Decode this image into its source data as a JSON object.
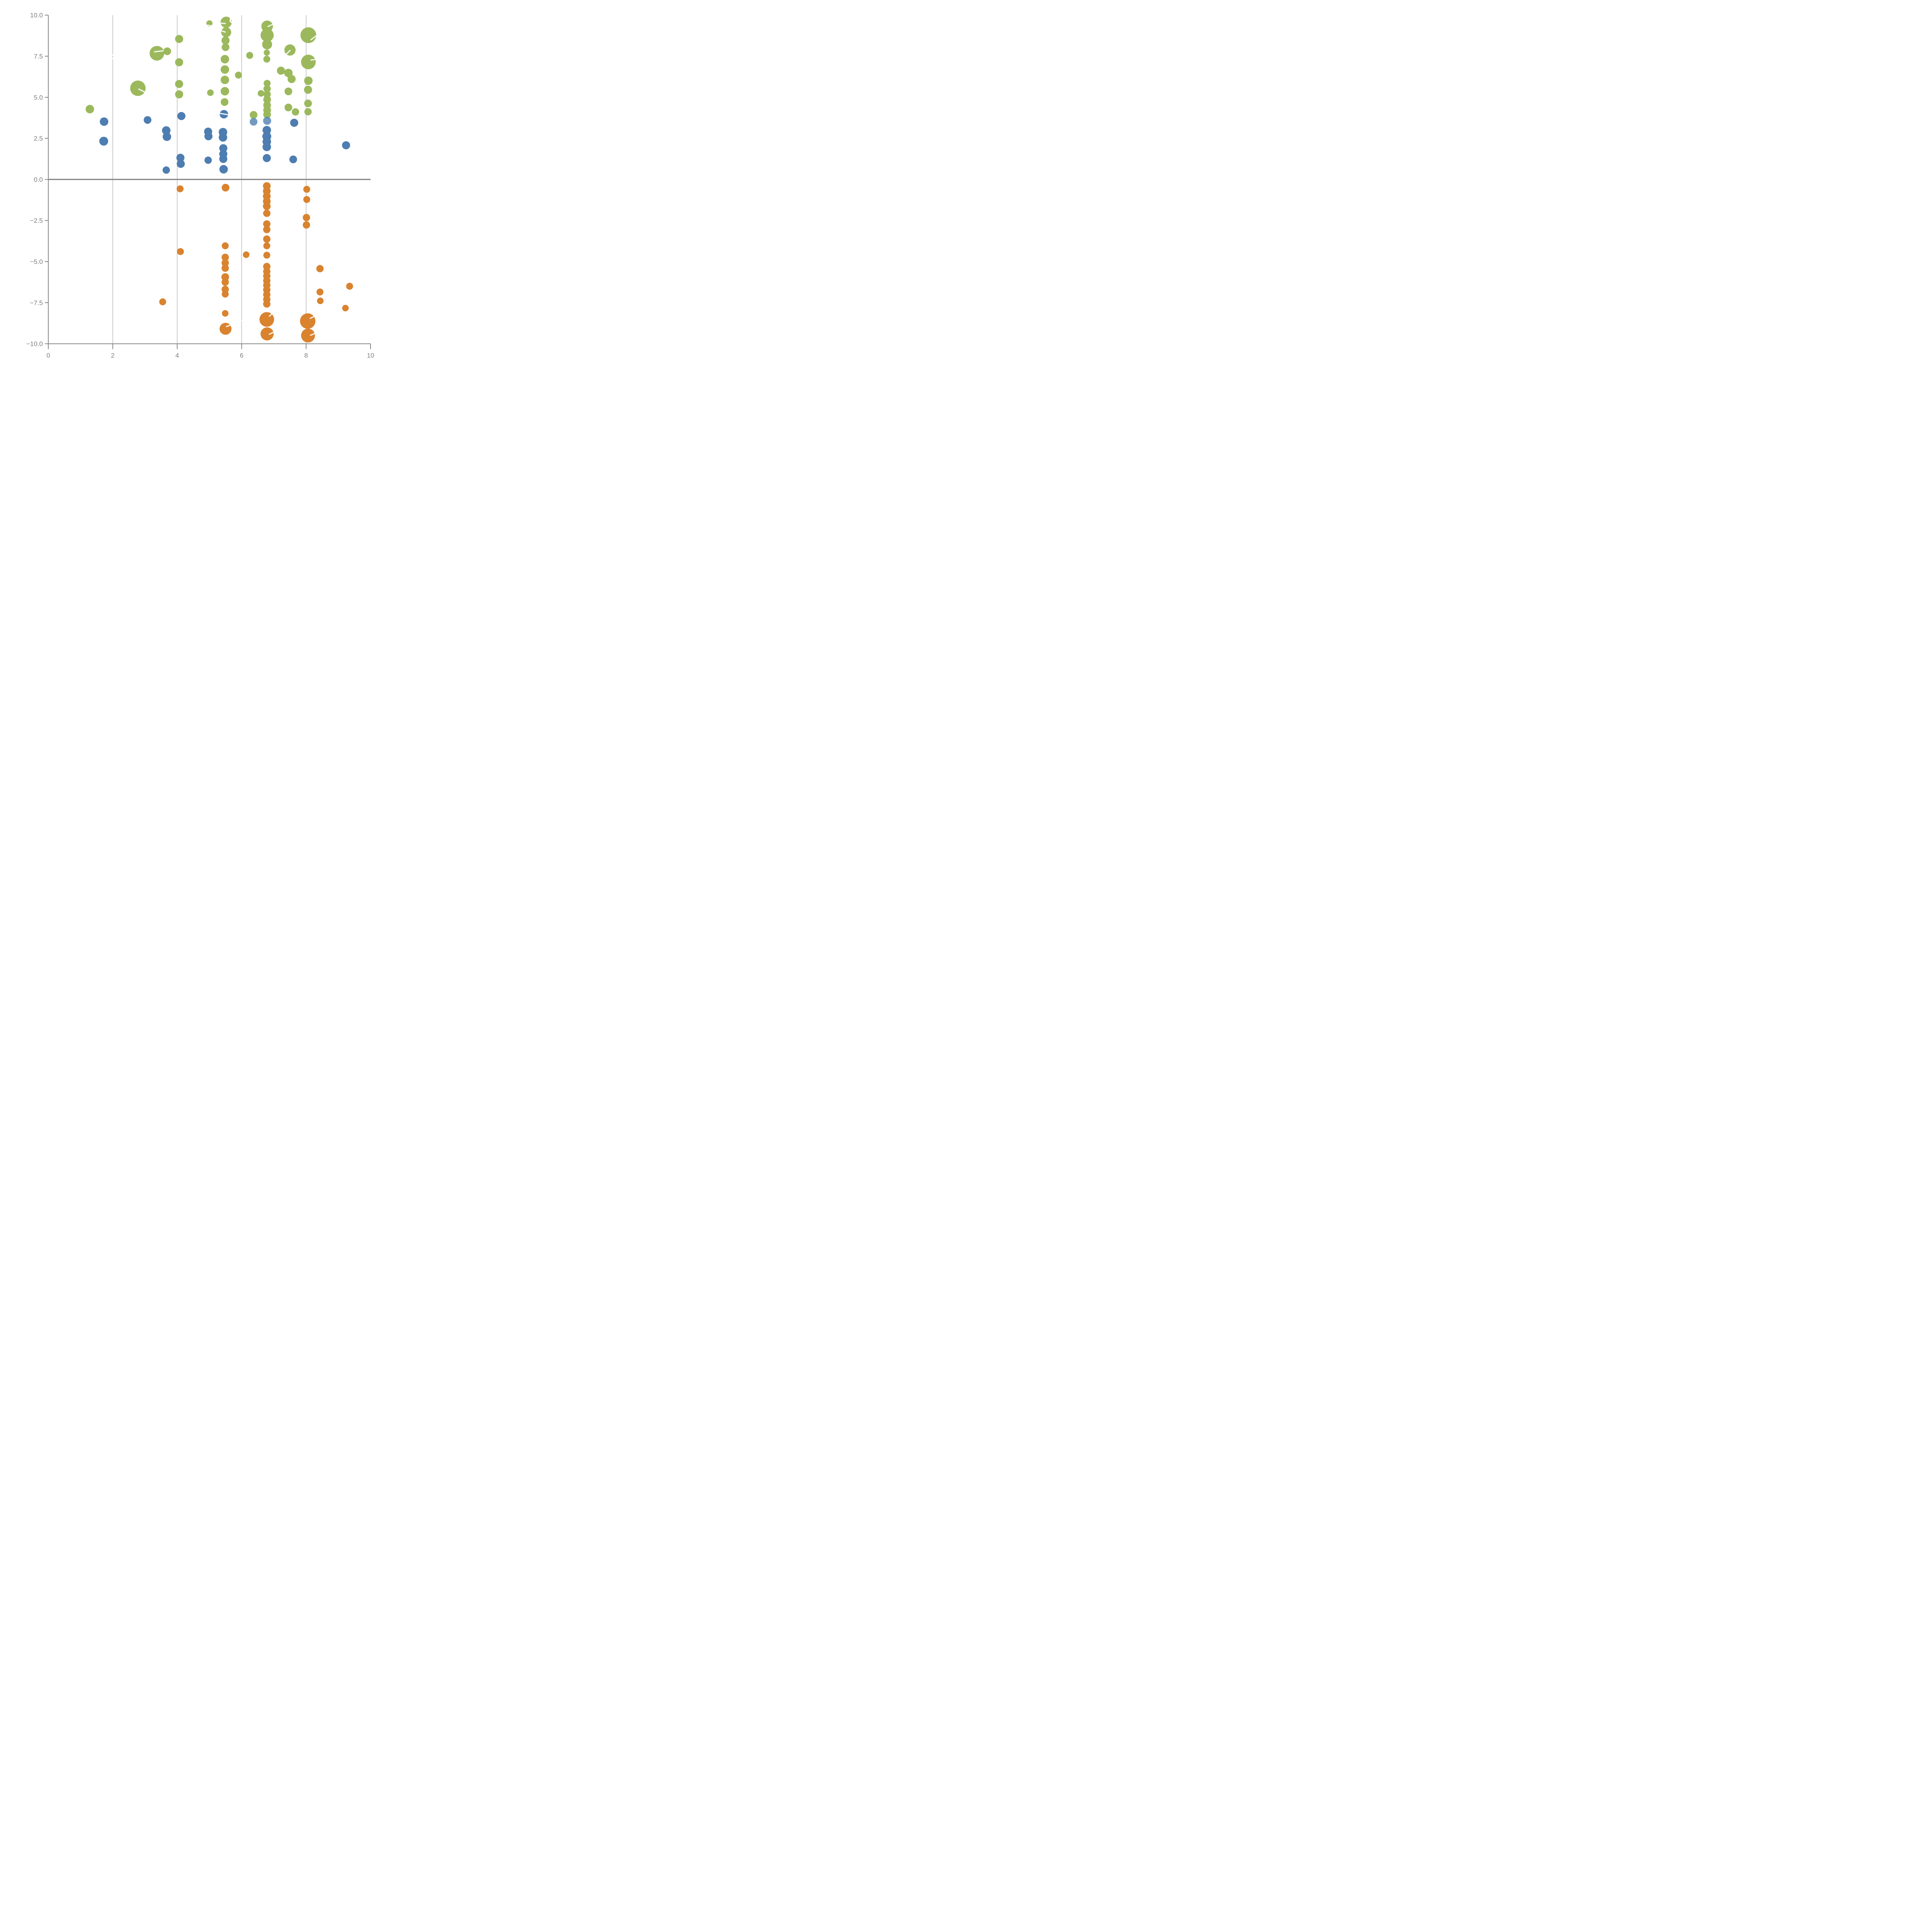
{
  "figure": {
    "background": "#ffffff",
    "title": ""
  },
  "chart_data": {
    "type": "scatter",
    "subtype": "bubble",
    "title": "",
    "xlabel": "",
    "ylabel": "",
    "xlim": [
      0,
      10
    ],
    "ylim": [
      -10,
      10
    ],
    "grid": "vertical-only",
    "legend": "none",
    "x_ticks": [
      {
        "v": 0,
        "label": "0"
      },
      {
        "v": 2,
        "label": "2"
      },
      {
        "v": 4,
        "label": "4"
      },
      {
        "v": 6,
        "label": "6"
      },
      {
        "v": 8,
        "label": "8"
      },
      {
        "v": 10,
        "label": "10"
      }
    ],
    "y_ticks": [
      {
        "v": 10,
        "label": "10.0"
      },
      {
        "v": 7.5,
        "label": "7.5"
      },
      {
        "v": 5,
        "label": "5.0"
      },
      {
        "v": 2.5,
        "label": "2.5"
      },
      {
        "v": 0,
        "label": "0.0"
      },
      {
        "v": -2.5,
        "label": "−2.5"
      },
      {
        "v": -5,
        "label": "−5.0"
      },
      {
        "v": -7.5,
        "label": "−7.5"
      },
      {
        "v": -10,
        "label": "−10.0"
      }
    ],
    "gridline_x_values": [
      2,
      4,
      6,
      8
    ],
    "zero_line": {
      "y": 0,
      "color": "#898989",
      "width": 3.2
    },
    "axis_color": "#888888",
    "gridline_color": "#9a9a9a",
    "tick_label_color": "#7f7f7f",
    "series": [
      {
        "name": "green",
        "color": "#9bb95c",
        "points": [
          [
            1.29,
            4.28,
            11
          ],
          [
            2.78,
            5.55,
            20
          ],
          [
            3.37,
            7.68,
            19
          ],
          [
            3.69,
            7.8,
            10
          ],
          [
            4.06,
            8.55,
            10.5
          ],
          [
            4.06,
            7.13,
            10.5
          ],
          [
            4.06,
            5.81,
            10.5
          ],
          [
            4.06,
            5.18,
            10.5
          ],
          [
            5.0,
            9.5,
            8
          ],
          [
            5.52,
            9.57,
            14.5
          ],
          [
            5.52,
            8.96,
            13
          ],
          [
            5.5,
            8.46,
            10.5
          ],
          [
            5.5,
            8.05,
            10
          ],
          [
            5.48,
            7.32,
            11
          ],
          [
            5.48,
            6.69,
            11
          ],
          [
            5.48,
            6.06,
            11
          ],
          [
            5.48,
            5.37,
            11
          ],
          [
            5.47,
            4.71,
            10
          ],
          [
            5.03,
            5.28,
            8.5
          ],
          [
            5.9,
            6.35,
            9
          ],
          [
            6.25,
            7.55,
            9
          ],
          [
            6.37,
            3.93,
            10
          ],
          [
            6.6,
            5.24,
            8.5
          ],
          [
            6.79,
            9.32,
            15
          ],
          [
            6.79,
            8.78,
            17
          ],
          [
            6.79,
            8.22,
            13
          ],
          [
            6.78,
            7.72,
            8
          ],
          [
            6.78,
            7.32,
            9
          ],
          [
            6.79,
            5.85,
            9
          ],
          [
            6.79,
            5.52,
            9.5
          ],
          [
            6.79,
            5.18,
            9.5
          ],
          [
            6.79,
            4.86,
            10
          ],
          [
            6.79,
            4.52,
            10
          ],
          [
            6.79,
            4.22,
            10
          ],
          [
            6.79,
            3.95,
            10
          ],
          [
            7.22,
            6.62,
            10.5
          ],
          [
            7.45,
            6.48,
            11
          ],
          [
            7.55,
            6.11,
            10.5
          ],
          [
            7.45,
            5.36,
            10
          ],
          [
            7.45,
            4.38,
            10
          ],
          [
            7.67,
            4.11,
            9.5
          ],
          [
            7.5,
            7.88,
            14.5
          ],
          [
            8.07,
            8.78,
            20.5
          ],
          [
            8.07,
            7.15,
            19
          ],
          [
            8.07,
            6.01,
            11
          ],
          [
            8.06,
            5.46,
            10.5
          ],
          [
            8.06,
            4.63,
            10
          ],
          [
            8.06,
            4.12,
            9.5
          ]
        ]
      },
      {
        "name": "blue",
        "color": "#4d7db1",
        "points": [
          [
            1.73,
            3.52,
            11
          ],
          [
            1.72,
            2.33,
            11.5
          ],
          [
            3.08,
            3.62,
            10
          ],
          [
            3.66,
            2.98,
            11
          ],
          [
            3.68,
            2.6,
            11
          ],
          [
            3.66,
            0.57,
            9.5
          ],
          [
            4.13,
            3.86,
            10.5
          ],
          [
            4.1,
            1.32,
            10.5
          ],
          [
            4.11,
            0.95,
            10.5
          ],
          [
            4.96,
            2.91,
            10.5
          ],
          [
            4.97,
            2.63,
            10.5
          ],
          [
            4.96,
            1.17,
            9.5
          ],
          [
            5.45,
            3.97,
            11
          ],
          [
            5.42,
            2.88,
            11
          ],
          [
            5.42,
            2.56,
            11
          ],
          [
            5.43,
            1.9,
            10.5
          ],
          [
            5.43,
            1.55,
            10.5
          ],
          [
            5.43,
            1.25,
            10.5
          ],
          [
            5.44,
            0.62,
            11
          ],
          [
            6.37,
            3.51,
            10
          ],
          [
            6.79,
            3.57,
            10.5
          ],
          [
            6.78,
            3.0,
            11
          ],
          [
            6.78,
            2.62,
            11.5
          ],
          [
            6.78,
            2.3,
            11
          ],
          [
            6.78,
            1.98,
            11
          ],
          [
            6.78,
            1.3,
            10.5
          ],
          [
            7.63,
            3.45,
            10.5
          ],
          [
            7.6,
            1.22,
            10
          ],
          [
            9.24,
            2.08,
            10.5
          ]
        ],
        "translucent_points_idx": [
          19,
          20
        ]
      },
      {
        "name": "orange",
        "color": "#d9832f",
        "points": [
          [
            4.09,
            -0.57,
            9
          ],
          [
            5.5,
            -0.5,
            10
          ],
          [
            6.78,
            -0.4,
            10
          ],
          [
            6.78,
            -0.71,
            10
          ],
          [
            6.78,
            -1.02,
            10
          ],
          [
            6.78,
            -1.33,
            10
          ],
          [
            6.78,
            -1.63,
            10
          ],
          [
            6.78,
            -2.06,
            9.5
          ],
          [
            6.78,
            -2.71,
            9.5
          ],
          [
            6.78,
            -3.05,
            9.5
          ],
          [
            8.02,
            -0.6,
            9
          ],
          [
            8.02,
            -1.22,
            9
          ],
          [
            8.01,
            -2.32,
            9.5
          ],
          [
            8.01,
            -2.77,
            9.5
          ],
          [
            4.1,
            -4.39,
            9
          ],
          [
            3.55,
            -7.45,
            9
          ],
          [
            5.49,
            -4.04,
            9
          ],
          [
            5.49,
            -4.74,
            9.5
          ],
          [
            5.49,
            -5.08,
            9.5
          ],
          [
            5.49,
            -5.4,
            9.5
          ],
          [
            5.49,
            -5.94,
            10
          ],
          [
            5.49,
            -6.25,
            9.5
          ],
          [
            5.49,
            -6.69,
            9.5
          ],
          [
            5.49,
            -6.98,
            9
          ],
          [
            5.49,
            -8.15,
            8.5
          ],
          [
            5.5,
            -9.09,
            15.5
          ],
          [
            6.14,
            -4.58,
            8.5
          ],
          [
            6.78,
            -3.63,
            9.5
          ],
          [
            6.78,
            -4.04,
            9
          ],
          [
            6.78,
            -4.61,
            9
          ],
          [
            6.78,
            -5.3,
            9.5
          ],
          [
            6.78,
            -5.6,
            9.5
          ],
          [
            6.78,
            -5.88,
            9.5
          ],
          [
            6.78,
            -6.16,
            9.5
          ],
          [
            6.78,
            -6.44,
            9.5
          ],
          [
            6.78,
            -6.72,
            9.5
          ],
          [
            6.78,
            -7.01,
            9.5
          ],
          [
            6.78,
            -7.3,
            9.5
          ],
          [
            6.78,
            -7.58,
            9.5
          ],
          [
            6.78,
            -8.52,
            19
          ],
          [
            6.79,
            -9.4,
            17
          ],
          [
            8.05,
            -8.62,
            20
          ],
          [
            8.06,
            -9.5,
            18
          ],
          [
            8.43,
            -5.43,
            9.5
          ],
          [
            8.43,
            -6.85,
            9
          ],
          [
            8.44,
            -7.39,
            8.5
          ],
          [
            9.35,
            -6.5,
            9
          ],
          [
            9.22,
            -7.83,
            8.5
          ]
        ]
      }
    ],
    "white_highlight_segments": [
      [
        1.95,
        7.6,
        2.06,
        7.54
      ],
      [
        1.95,
        7.38,
        2.07,
        7.32
      ],
      [
        5.97,
        9.75,
        5.97,
        9.48
      ],
      [
        4.72,
        9.44,
        5.08,
        9.35
      ],
      [
        4.75,
        9.17,
        4.93,
        9.02
      ],
      [
        5.29,
        9.52,
        5.49,
        9.49
      ],
      [
        5.3,
        9.09,
        5.49,
        8.97
      ],
      [
        2.81,
        5.5,
        3.06,
        5.25
      ],
      [
        3.3,
        7.77,
        3.56,
        7.83
      ],
      [
        6.82,
        9.31,
        7.03,
        9.5
      ],
      [
        7.33,
        7.51,
        7.5,
        7.85
      ],
      [
        8.15,
        8.5,
        8.34,
        8.78
      ],
      [
        8.15,
        7.27,
        8.33,
        7.32
      ],
      [
        5.3,
        4.03,
        5.61,
        3.93
      ],
      [
        5.53,
        -8.95,
        5.82,
        -8.76
      ],
      [
        6.86,
        -8.32,
        7.01,
        -8.06
      ],
      [
        6.86,
        -9.42,
        7.04,
        -9.26
      ],
      [
        8.13,
        -8.45,
        8.31,
        -8.28
      ],
      [
        8.14,
        -9.48,
        8.34,
        -9.32
      ],
      [
        5.96,
        -8.62,
        6.07,
        -8.55
      ]
    ],
    "white_ring": {
      "x": 5.71,
      "y": 9.68,
      "r": 5.5
    }
  }
}
